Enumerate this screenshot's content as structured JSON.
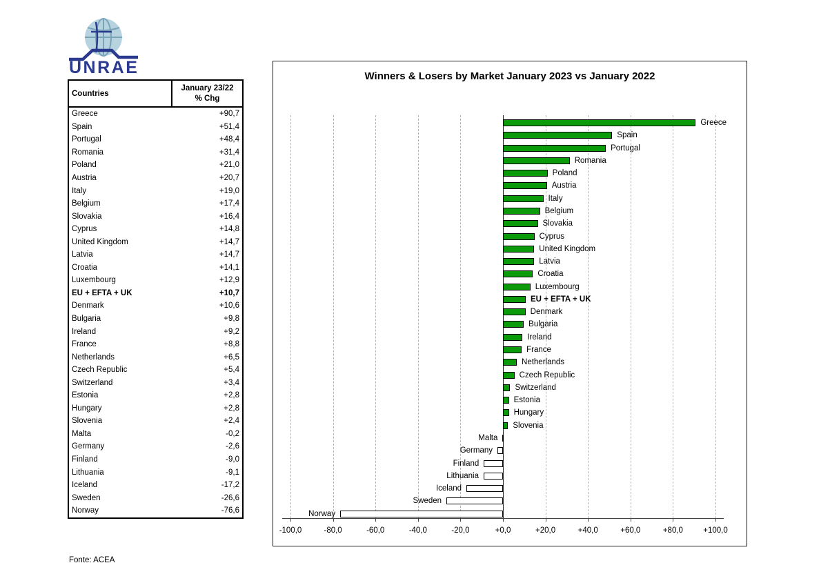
{
  "logo": {
    "text": "UNRAE"
  },
  "table": {
    "header_col1": "Countries",
    "header_col2_line1": "January 23/22",
    "header_col2_line2": "% Chg"
  },
  "source_note": "Fonte: ACEA",
  "chart_data": {
    "type": "bar",
    "orientation": "horizontal",
    "title": "Winners & Losers by Market January 2023 vs January 2022",
    "categories": [
      "Greece",
      "Spain",
      "Portugal",
      "Romania",
      "Poland",
      "Austria",
      "Italy",
      "Belgium",
      "Slovakia",
      "Cyprus",
      "United Kingdom",
      "Latvia",
      "Croatia",
      "Luxembourg",
      "EU + EFTA + UK",
      "Denmark",
      "Bulgaria",
      "Ireland",
      "France",
      "Netherlands",
      "Czech Republic",
      "Switzerland",
      "Estonia",
      "Hungary",
      "Slovenia",
      "Malta",
      "Germany",
      "Finland",
      "Lithuania",
      "Iceland",
      "Sweden",
      "Norway"
    ],
    "values": [
      90.7,
      51.4,
      48.4,
      31.4,
      21.0,
      20.7,
      19.0,
      17.4,
      16.4,
      14.8,
      14.7,
      14.7,
      14.1,
      12.9,
      10.7,
      10.6,
      9.8,
      9.2,
      8.8,
      6.5,
      5.4,
      3.4,
      2.8,
      2.8,
      2.4,
      -0.2,
      -2.6,
      -9.0,
      -9.1,
      -17.2,
      -26.6,
      -76.6
    ],
    "display_values": [
      "+90,7",
      "+51,4",
      "+48,4",
      "+31,4",
      "+21,0",
      "+20,7",
      "+19,0",
      "+17,4",
      "+16,4",
      "+14,8",
      "+14,7",
      "+14,7",
      "+14,1",
      "+12,9",
      "+10,7",
      "+10,6",
      "+9,8",
      "+9,2",
      "+8,8",
      "+6,5",
      "+5,4",
      "+3,4",
      "+2,8",
      "+2,8",
      "+2,4",
      "-0,2",
      "-2,6",
      "-9,0",
      "-9,1",
      "-17,2",
      "-26,6",
      "-76,6"
    ],
    "bold_category": "EU + EFTA + UK",
    "xlim": [
      -100,
      100
    ],
    "xtick_labels": [
      "-100,0",
      "-80,0",
      "-60,0",
      "-40,0",
      "-20,0",
      "+0,0",
      "+20,0",
      "+40,0",
      "+60,0",
      "+80,0",
      "+100,0"
    ],
    "grid": "vertical-dashed",
    "legend": "none",
    "positive_color": "#0a9a0a",
    "negative_color": "#ffffff",
    "bar_border_color": "#000000"
  }
}
